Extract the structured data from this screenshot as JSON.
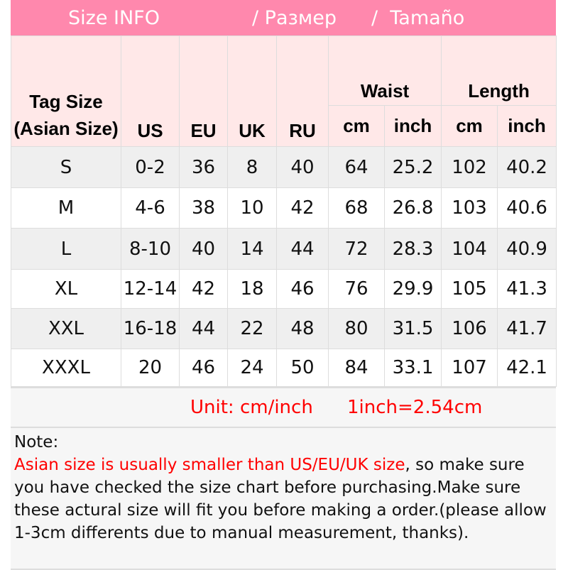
{
  "title": {
    "en": "Size INFO",
    "ru": "/  Размер",
    "es": "/  Tamaño"
  },
  "header": {
    "tag_size": "Tag Size (Asian Size)",
    "us": "US",
    "eu": "EU",
    "uk": "UK",
    "ru": "RU",
    "waist": "Waist",
    "length": "Length",
    "waist_cm": "cm",
    "waist_inch": "inch",
    "length_cm": "cm",
    "length_inch": "inch"
  },
  "rows": [
    [
      "S",
      "0-2",
      "36",
      "8",
      "40",
      "64",
      "25.2",
      "102",
      "40.2"
    ],
    [
      "M",
      "4-6",
      "38",
      "10",
      "42",
      "68",
      "26.8",
      "103",
      "40.6"
    ],
    [
      "L",
      "8-10",
      "40",
      "14",
      "44",
      "72",
      "28.3",
      "104",
      "40.9"
    ],
    [
      "XL",
      "12-14",
      "42",
      "18",
      "46",
      "76",
      "29.9",
      "105",
      "41.3"
    ],
    [
      "XXL",
      "16-18",
      "44",
      "22",
      "48",
      "80",
      "31.5",
      "106",
      "41.7"
    ],
    [
      "XXXL",
      "20",
      "46",
      "24",
      "50",
      "84",
      "33.1",
      "107",
      "42.1"
    ]
  ],
  "unit": {
    "label": "Unit: cm/inch",
    "conversion": "1inch=2.54cm"
  },
  "note": {
    "label": "Note:",
    "warning": "Asian size is usually smaller than US/EU/UK size",
    "text": ", so make sure you have checked the size chart before purchasing.Make sure these actural size will fit you before making a order.(please allow 1-3cm differents due to manual measurement, thanks)."
  },
  "colors": {
    "title_bg": "#ff88ad",
    "header_bg": "#ffe8e8",
    "accent_red": "#ff0000"
  }
}
